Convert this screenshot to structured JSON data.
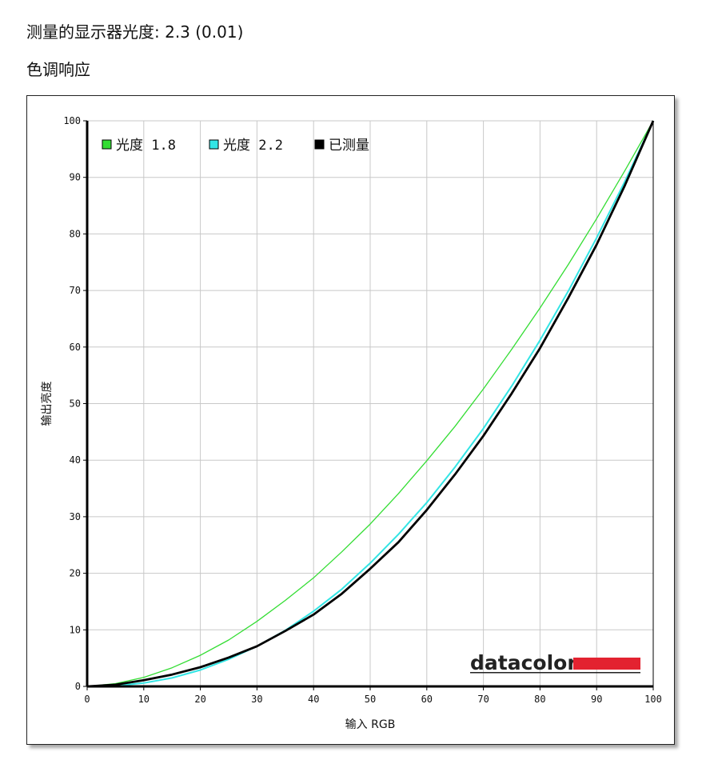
{
  "header": {
    "gamma_text": "测量的显示器光度:  2.3 (0.01)",
    "section_title": "色调响应"
  },
  "branding": {
    "logo_text": "datacolor",
    "logo_bar_color": "#e32230"
  },
  "chart_data": {
    "type": "line",
    "xlabel": "输入 RGB",
    "ylabel": "输出亮度",
    "xlim": [
      0,
      100
    ],
    "ylim": [
      0,
      100
    ],
    "xticks": [
      0,
      10,
      20,
      30,
      40,
      50,
      60,
      70,
      80,
      90,
      100
    ],
    "yticks": [
      0,
      10,
      20,
      30,
      40,
      50,
      60,
      70,
      80,
      90,
      100
    ],
    "grid": true,
    "legend_position": "top-left",
    "x": [
      0,
      5,
      10,
      15,
      20,
      25,
      30,
      35,
      40,
      45,
      50,
      55,
      60,
      65,
      70,
      75,
      80,
      85,
      90,
      95,
      100
    ],
    "series": [
      {
        "name": "光度 1.8",
        "color": "#33dd33",
        "width": 1.3,
        "values": [
          0,
          0.5,
          1.6,
          3.3,
          5.5,
          8.2,
          11.5,
          15.2,
          19.2,
          23.8,
          28.7,
          34.1,
          39.9,
          46.0,
          52.6,
          59.6,
          66.9,
          74.6,
          82.7,
          91.2,
          100
        ]
      },
      {
        "name": "光度 2.2",
        "color": "#33e5e5",
        "width": 2,
        "values": [
          0,
          0.1,
          0.6,
          1.5,
          2.9,
          4.8,
          7.1,
          9.9,
          13.3,
          17.2,
          21.8,
          26.9,
          32.5,
          38.8,
          45.6,
          53.1,
          61.2,
          69.9,
          79.3,
          89.3,
          100
        ]
      },
      {
        "name": "已测量",
        "color": "#000000",
        "width": 2.8,
        "values": [
          0,
          0.3,
          1.1,
          2.1,
          3.4,
          5.1,
          7.1,
          9.8,
          12.7,
          16.4,
          20.8,
          25.5,
          31.2,
          37.5,
          44.3,
          51.8,
          59.8,
          68.7,
          78.1,
          88.6,
          100
        ]
      }
    ]
  }
}
